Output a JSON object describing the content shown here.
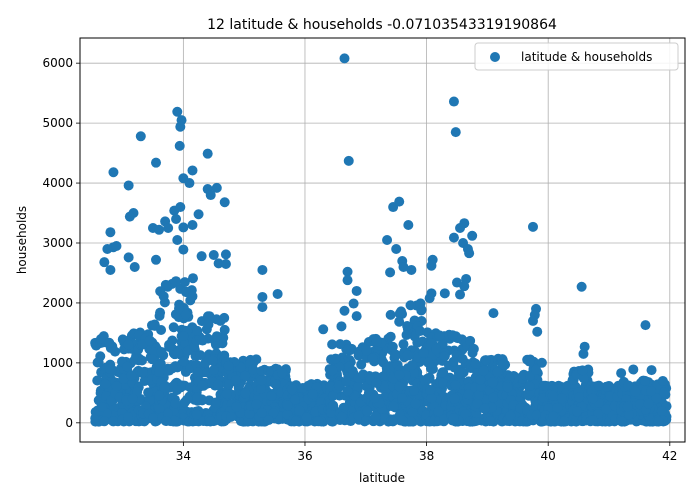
{
  "chart_data": {
    "type": "scatter",
    "title": "12 latitude & households -0.07103543319190864",
    "xlabel": "latitude",
    "ylabel": "households",
    "xlim": [
      32.3,
      42.25
    ],
    "ylim": [
      -320,
      6420
    ],
    "x_ticks": [
      34,
      36,
      38,
      40,
      42
    ],
    "y_ticks": [
      0,
      1000,
      2000,
      3000,
      4000,
      5000,
      6000
    ],
    "x_tick_labels": [
      "34",
      "36",
      "38",
      "40",
      "42"
    ],
    "y_tick_labels": [
      "0",
      "1000",
      "2000",
      "3000",
      "4000",
      "5000",
      "6000"
    ],
    "grid": true,
    "legend_position": "top-right",
    "series": [
      {
        "name": "latitude & households",
        "color": "#1f77b4",
        "points": [
          [
            33.9,
            5190
          ],
          [
            33.97,
            5050
          ],
          [
            33.95,
            4940
          ],
          [
            33.94,
            4620
          ],
          [
            33.55,
            4340
          ],
          [
            33.3,
            4780
          ],
          [
            32.85,
            4180
          ],
          [
            33.1,
            3960
          ],
          [
            34.4,
            4490
          ],
          [
            34.15,
            4210
          ],
          [
            34.0,
            4080
          ],
          [
            34.1,
            4000
          ],
          [
            34.4,
            3900
          ],
          [
            34.55,
            3920
          ],
          [
            34.45,
            3800
          ],
          [
            34.68,
            3680
          ],
          [
            33.85,
            3540
          ],
          [
            33.95,
            3600
          ],
          [
            33.18,
            3500
          ],
          [
            33.12,
            3440
          ],
          [
            34.25,
            3480
          ],
          [
            33.7,
            3360
          ],
          [
            33.88,
            3400
          ],
          [
            34.0,
            3260
          ],
          [
            34.15,
            3300
          ],
          [
            33.5,
            3250
          ],
          [
            33.6,
            3220
          ],
          [
            32.8,
            3180
          ],
          [
            33.75,
            3250
          ],
          [
            33.9,
            3050
          ],
          [
            32.85,
            2930
          ],
          [
            32.75,
            2900
          ],
          [
            32.9,
            2950
          ],
          [
            33.1,
            2760
          ],
          [
            33.55,
            2720
          ],
          [
            34.0,
            2890
          ],
          [
            34.3,
            2780
          ],
          [
            34.5,
            2800
          ],
          [
            34.7,
            2810
          ],
          [
            34.58,
            2660
          ],
          [
            34.7,
            2650
          ],
          [
            33.2,
            2600
          ],
          [
            32.7,
            2680
          ],
          [
            32.8,
            2550
          ],
          [
            35.3,
            2550
          ],
          [
            35.3,
            2100
          ],
          [
            35.3,
            1930
          ],
          [
            35.55,
            2150
          ],
          [
            36.65,
            6080
          ],
          [
            36.72,
            4370
          ],
          [
            36.7,
            2520
          ],
          [
            36.7,
            2380
          ],
          [
            36.85,
            2200
          ],
          [
            36.8,
            1990
          ],
          [
            36.65,
            1870
          ],
          [
            36.3,
            1560
          ],
          [
            36.85,
            1780
          ],
          [
            36.6,
            1610
          ],
          [
            37.45,
            3600
          ],
          [
            37.55,
            3690
          ],
          [
            37.35,
            3050
          ],
          [
            37.7,
            3300
          ],
          [
            37.5,
            2900
          ],
          [
            37.6,
            2700
          ],
          [
            37.75,
            2550
          ],
          [
            37.4,
            2510
          ],
          [
            37.62,
            2600
          ],
          [
            38.1,
            2720
          ],
          [
            38.08,
            2620
          ],
          [
            38.45,
            5360
          ],
          [
            38.48,
            4850
          ],
          [
            38.62,
            3330
          ],
          [
            38.55,
            3250
          ],
          [
            38.45,
            3090
          ],
          [
            38.6,
            3000
          ],
          [
            38.68,
            2900
          ],
          [
            38.75,
            3120
          ],
          [
            38.7,
            2830
          ],
          [
            38.5,
            2340
          ],
          [
            38.65,
            2400
          ],
          [
            38.62,
            2280
          ],
          [
            38.08,
            2160
          ],
          [
            38.3,
            2160
          ],
          [
            38.55,
            2140
          ],
          [
            38.05,
            2080
          ],
          [
            39.75,
            3270
          ],
          [
            39.8,
            1900
          ],
          [
            39.78,
            1800
          ],
          [
            39.75,
            1700
          ],
          [
            39.82,
            1520
          ],
          [
            40.55,
            2270
          ],
          [
            41.6,
            1630
          ],
          [
            39.1,
            1830
          ],
          [
            40.6,
            1270
          ],
          [
            40.58,
            1150
          ],
          [
            41.7,
            880
          ],
          [
            41.4,
            890
          ],
          [
            41.2,
            830
          ]
        ]
      }
    ]
  }
}
